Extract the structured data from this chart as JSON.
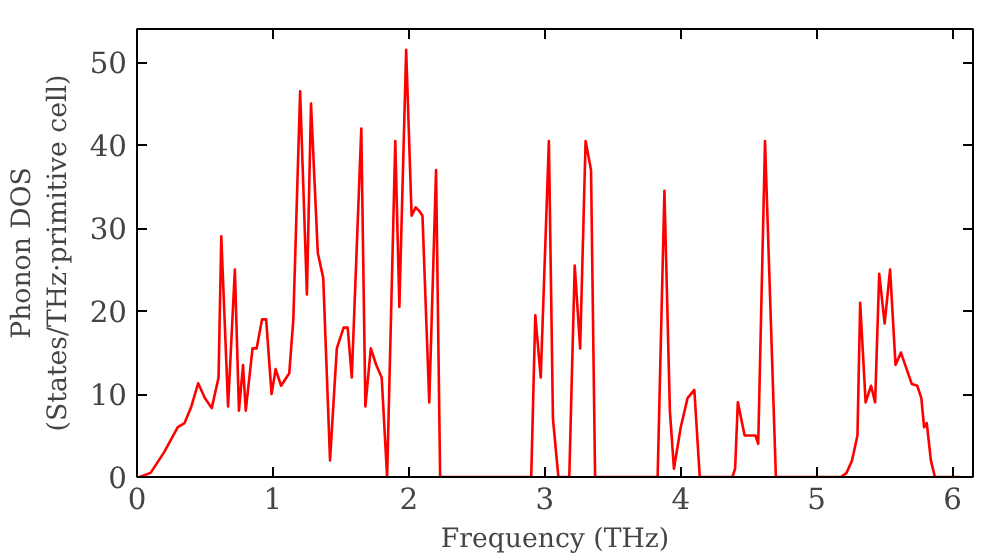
{
  "chart_data": {
    "type": "line",
    "xlabel": "Frequency (THz)",
    "ylabel": "Phonon DOS\n(States/THz·primitive cell)",
    "xlim": [
      0,
      6.15
    ],
    "ylim": [
      0,
      54
    ],
    "xticks": [
      0,
      1,
      2,
      3,
      4,
      5,
      6
    ],
    "yticks": [
      0,
      10,
      20,
      30,
      40,
      50
    ],
    "grid": false,
    "marker": "none",
    "line_style": "solid",
    "series": [
      {
        "color": "#ff0000",
        "x": [
          0.02,
          0.1,
          0.2,
          0.3,
          0.35,
          0.4,
          0.45,
          0.5,
          0.55,
          0.6,
          0.62,
          0.67,
          0.72,
          0.75,
          0.78,
          0.8,
          0.85,
          0.88,
          0.92,
          0.95,
          0.99,
          1.02,
          1.06,
          1.12,
          1.15,
          1.2,
          1.25,
          1.28,
          1.33,
          1.37,
          1.42,
          1.47,
          1.52,
          1.55,
          1.58,
          1.65,
          1.68,
          1.72,
          1.76,
          1.8,
          1.84,
          1.9,
          1.93,
          1.98,
          2.02,
          2.05,
          2.08,
          2.1,
          2.15,
          2.2,
          2.23,
          2.9,
          2.93,
          2.97,
          3.03,
          3.06,
          3.1,
          3.18,
          3.22,
          3.26,
          3.3,
          3.34,
          3.37,
          3.83,
          3.88,
          3.92,
          3.95,
          4.0,
          4.05,
          4.1,
          4.14,
          4.38,
          4.4,
          4.42,
          4.47,
          4.5,
          4.55,
          4.57,
          4.62,
          4.7,
          5.18,
          5.22,
          5.26,
          5.3,
          5.32,
          5.36,
          5.4,
          5.43,
          5.46,
          5.5,
          5.54,
          5.58,
          5.62,
          5.7,
          5.74,
          5.77,
          5.79,
          5.81,
          5.84,
          5.87,
          6.05
        ],
        "values": [
          0,
          0.5,
          3,
          6,
          6.5,
          8.5,
          11.3,
          9.5,
          8.3,
          12,
          29,
          8.5,
          25,
          8,
          13.5,
          8,
          15.5,
          15.5,
          19,
          19,
          10,
          13,
          11,
          12.5,
          19,
          46.5,
          22,
          45,
          27,
          24,
          2,
          15.5,
          18,
          18,
          12,
          42,
          8.5,
          15.5,
          13.5,
          12,
          0,
          40.5,
          20.5,
          51.5,
          31.5,
          32.5,
          32,
          31.5,
          9,
          37,
          0,
          0,
          19.5,
          12,
          40.5,
          7,
          0,
          0,
          25.5,
          15.5,
          40.5,
          37,
          0,
          0,
          34.5,
          8,
          1,
          6,
          9.5,
          10.5,
          0,
          0,
          1,
          9,
          5,
          5,
          5,
          4,
          40.5,
          0,
          0,
          0.5,
          2,
          5,
          21,
          9,
          11,
          9,
          24.5,
          18.5,
          25,
          13.5,
          15,
          11.2,
          11,
          9.5,
          6,
          6.5,
          2,
          0,
          0
        ]
      }
    ]
  }
}
